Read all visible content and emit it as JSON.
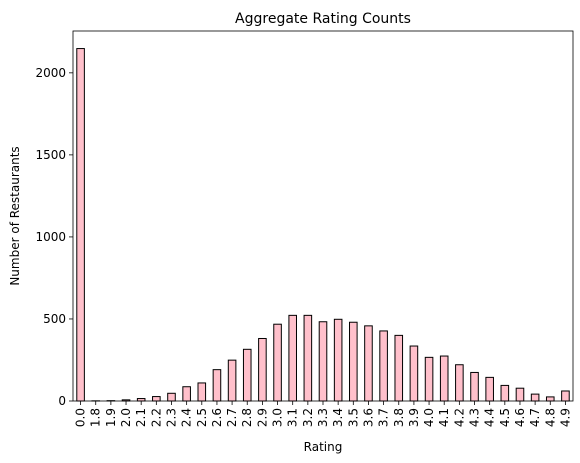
{
  "chart_data": {
    "type": "bar",
    "title": "Aggregate Rating Counts",
    "xlabel": "Rating",
    "ylabel": "Number of Restaurants",
    "categories": [
      "0.0",
      "1.8",
      "1.9",
      "2.0",
      "2.1",
      "2.2",
      "2.3",
      "2.4",
      "2.5",
      "2.6",
      "2.7",
      "2.8",
      "2.9",
      "3.0",
      "3.1",
      "3.2",
      "3.3",
      "3.4",
      "3.5",
      "3.6",
      "3.7",
      "3.8",
      "3.9",
      "4.0",
      "4.1",
      "4.2",
      "4.3",
      "4.4",
      "4.5",
      "4.6",
      "4.7",
      "4.8",
      "4.9"
    ],
    "values": [
      2148,
      1,
      2,
      7,
      15,
      27,
      47,
      87,
      110,
      191,
      249,
      315,
      381,
      468,
      522,
      522,
      483,
      498,
      480,
      458,
      427,
      400,
      335,
      266,
      274,
      221,
      174,
      144,
      95,
      78,
      42,
      25,
      61
    ],
    "ylim": [
      0,
      2255
    ],
    "yticks": [
      0,
      500,
      1000,
      1500,
      2000
    ],
    "bar_color": "#ffc0cb",
    "edge_color": "#000000",
    "grid": false,
    "legend": "none"
  }
}
